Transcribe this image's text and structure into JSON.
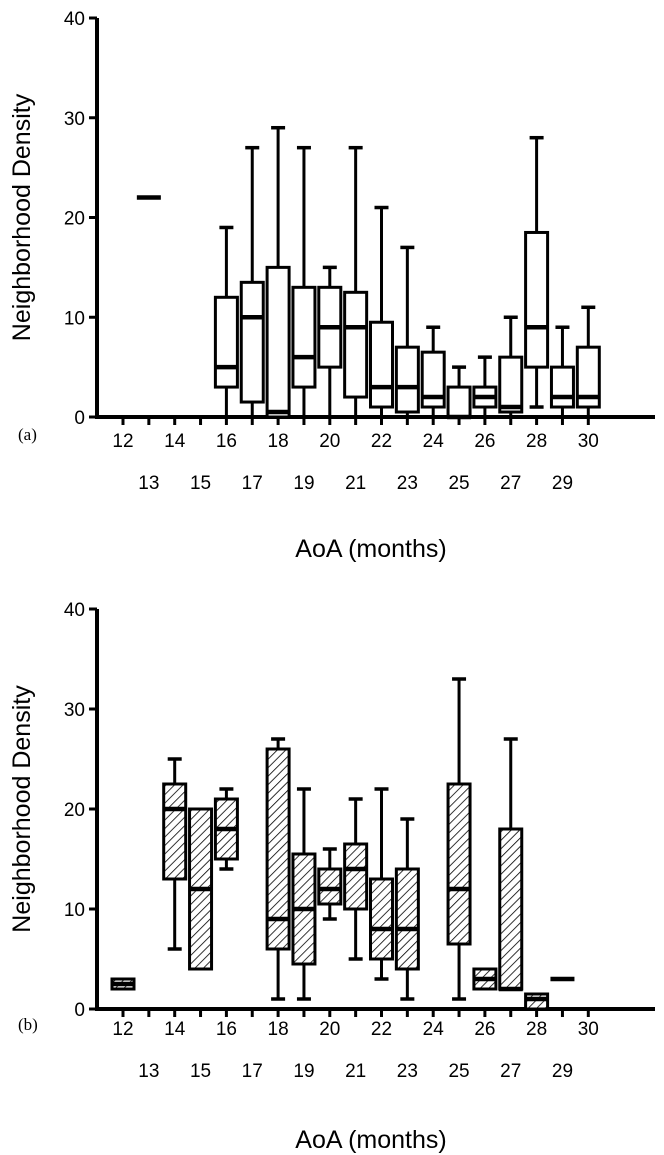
{
  "chart_data": [
    {
      "type": "box",
      "panel_label": "(a)",
      "xlabel": "AoA (months)",
      "ylabel": "Neighborhood Density",
      "ylim": [
        0,
        40
      ],
      "yticks": [
        0,
        10,
        20,
        30,
        40
      ],
      "x_ticks_upper": [
        "12",
        "14",
        "16",
        "18",
        "20",
        "22",
        "24",
        "26",
        "28",
        "30"
      ],
      "x_ticks_lower": [
        "13",
        "15",
        "17",
        "19",
        "21",
        "23",
        "25",
        "27",
        "29"
      ],
      "fill": "none",
      "boxes": [
        {
          "x": "13",
          "min": 22,
          "q1": 22,
          "median": 22,
          "q3": 22,
          "max": 22
        },
        {
          "x": "16",
          "min": 0,
          "q1": 3,
          "median": 5,
          "q3": 12,
          "max": 19
        },
        {
          "x": "17",
          "min": 0,
          "q1": 1.5,
          "median": 10,
          "q3": 13.5,
          "max": 27
        },
        {
          "x": "18",
          "min": 0,
          "q1": 0,
          "median": 0.5,
          "q3": 15,
          "max": 29
        },
        {
          "x": "19",
          "min": 0,
          "q1": 3,
          "median": 6,
          "q3": 13,
          "max": 27
        },
        {
          "x": "20",
          "min": 0,
          "q1": 5,
          "median": 9,
          "q3": 13,
          "max": 15
        },
        {
          "x": "21",
          "min": 0,
          "q1": 2,
          "median": 9,
          "q3": 12.5,
          "max": 27
        },
        {
          "x": "22",
          "min": 0,
          "q1": 1,
          "median": 3,
          "q3": 9.5,
          "max": 21
        },
        {
          "x": "23",
          "min": 0,
          "q1": 0.5,
          "median": 3,
          "q3": 7,
          "max": 17
        },
        {
          "x": "24",
          "min": 0,
          "q1": 1,
          "median": 2,
          "q3": 6.5,
          "max": 9
        },
        {
          "x": "25",
          "min": 0,
          "q1": 0,
          "median": 0,
          "q3": 3,
          "max": 5
        },
        {
          "x": "26",
          "min": 0,
          "q1": 1,
          "median": 2,
          "q3": 3,
          "max": 6
        },
        {
          "x": "27",
          "min": 0,
          "q1": 0.5,
          "median": 1,
          "q3": 6,
          "max": 10
        },
        {
          "x": "28",
          "min": 1,
          "q1": 5,
          "median": 9,
          "q3": 18.5,
          "max": 28
        },
        {
          "x": "29",
          "min": 0,
          "q1": 1,
          "median": 2,
          "q3": 5,
          "max": 9
        },
        {
          "x": "30",
          "min": 0,
          "q1": 1,
          "median": 2,
          "q3": 7,
          "max": 11
        }
      ]
    },
    {
      "type": "box",
      "panel_label": "(b)",
      "xlabel": "AoA (months)",
      "ylabel": "Neighborhood Density",
      "ylim": [
        0,
        40
      ],
      "yticks": [
        0,
        10,
        20,
        30,
        40
      ],
      "x_ticks_upper": [
        "12",
        "14",
        "16",
        "18",
        "20",
        "22",
        "24",
        "26",
        "28",
        "30"
      ],
      "x_ticks_lower": [
        "13",
        "15",
        "17",
        "19",
        "21",
        "23",
        "25",
        "27",
        "29"
      ],
      "fill": "hatched",
      "boxes": [
        {
          "x": "12",
          "min": 2,
          "q1": 2,
          "median": 2.5,
          "q3": 3,
          "max": 3
        },
        {
          "x": "14",
          "min": 6,
          "q1": 13,
          "median": 20,
          "q3": 22.5,
          "max": 25
        },
        {
          "x": "15",
          "min": 4,
          "q1": 4,
          "median": 12,
          "q3": 20,
          "max": 20
        },
        {
          "x": "16",
          "min": 14,
          "q1": 15,
          "median": 18,
          "q3": 21,
          "max": 22
        },
        {
          "x": "18",
          "min": 1,
          "q1": 6,
          "median": 9,
          "q3": 26,
          "max": 27
        },
        {
          "x": "19",
          "min": 1,
          "q1": 4.5,
          "median": 10,
          "q3": 15.5,
          "max": 22
        },
        {
          "x": "20",
          "min": 9,
          "q1": 10.5,
          "median": 12,
          "q3": 14,
          "max": 16
        },
        {
          "x": "21",
          "min": 5,
          "q1": 10,
          "median": 14,
          "q3": 16.5,
          "max": 21
        },
        {
          "x": "22",
          "min": 3,
          "q1": 5,
          "median": 8,
          "q3": 13,
          "max": 22
        },
        {
          "x": "23",
          "min": 1,
          "q1": 4,
          "median": 8,
          "q3": 14,
          "max": 19
        },
        {
          "x": "25",
          "min": 1,
          "q1": 6.5,
          "median": 12,
          "q3": 22.5,
          "max": 33
        },
        {
          "x": "26",
          "min": 2,
          "q1": 2,
          "median": 3,
          "q3": 4,
          "max": 4
        },
        {
          "x": "27",
          "min": 2,
          "q1": 2,
          "median": 2,
          "q3": 18,
          "max": 27
        },
        {
          "x": "28",
          "min": 0,
          "q1": 0,
          "median": 1,
          "q3": 1.5,
          "max": 1.5
        },
        {
          "x": "29",
          "min": 3,
          "q1": 3,
          "median": 3,
          "q3": 3,
          "max": 3
        }
      ]
    }
  ]
}
